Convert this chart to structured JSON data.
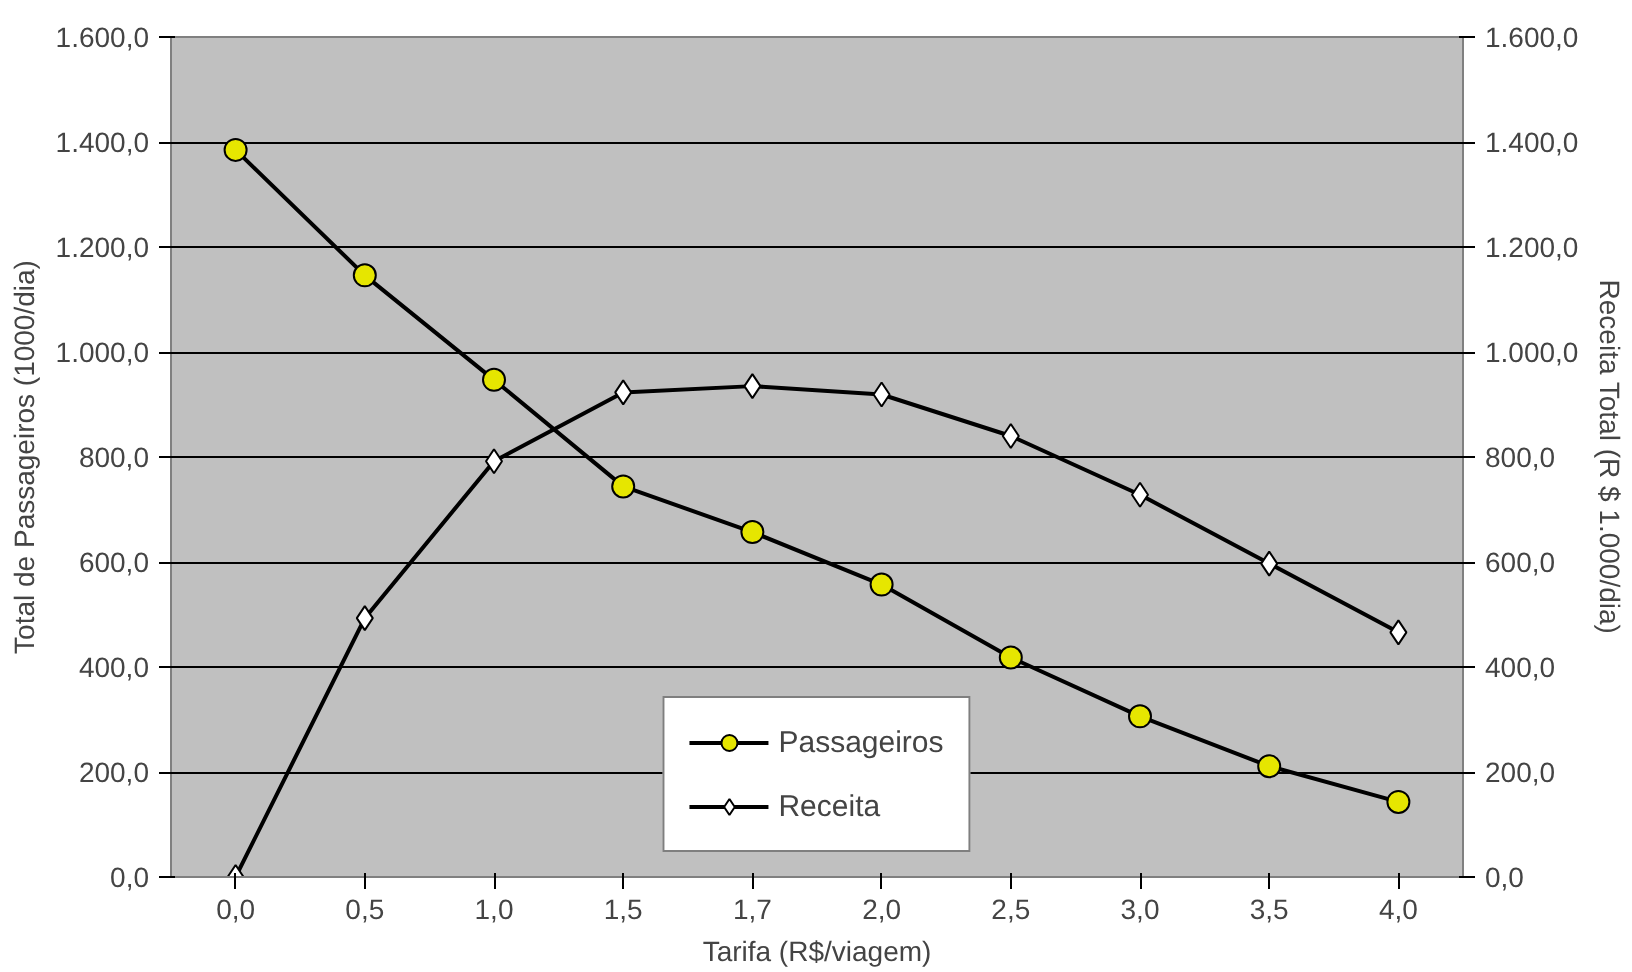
{
  "chart_data": {
    "type": "line",
    "xlabel": "Tarifa (R$/viagem)",
    "ylabel": "Total de Passageiros (1000/dia)",
    "y2label": "Receita Total (R $ 1.000/dia)",
    "categories": [
      "0,0",
      "0,5",
      "1,0",
      "1,5",
      "1,7",
      "2,0",
      "2,5",
      "3,0",
      "3,5",
      "4,0"
    ],
    "series": [
      {
        "name": "Passageiros",
        "color": "#e6e600",
        "marker": "circle",
        "values": [
          1385,
          1146,
          947,
          744,
          657,
          557,
          418,
          306,
          211,
          143
        ]
      },
      {
        "name": "Receita",
        "color": "#ffffff",
        "marker": "diamond",
        "axis": "y2",
        "values": [
          0,
          493,
          792,
          923,
          935,
          919,
          840,
          728,
          597,
          466
        ]
      }
    ],
    "ylim": [
      0,
      1600
    ],
    "yticks": [
      {
        "value": 0,
        "label": "0,0"
      },
      {
        "value": 200,
        "label": "200,0"
      },
      {
        "value": 400,
        "label": "400,0"
      },
      {
        "value": 600,
        "label": "600,0"
      },
      {
        "value": 800,
        "label": "800,0"
      },
      {
        "value": 1000,
        "label": "1.000,0"
      },
      {
        "value": 1200,
        "label": "1.200,0"
      },
      {
        "value": 1400,
        "label": "1.400,0"
      },
      {
        "value": 1600,
        "label": "1.600,0"
      }
    ],
    "y2lim": [
      0,
      1600
    ],
    "y2ticks": [
      {
        "value": 0,
        "label": "0,0"
      },
      {
        "value": 200,
        "label": "200,0"
      },
      {
        "value": 400,
        "label": "400,0"
      },
      {
        "value": 600,
        "label": "600,0"
      },
      {
        "value": 800,
        "label": "800,0"
      },
      {
        "value": 1000,
        "label": "1.000,0"
      },
      {
        "value": 1200,
        "label": "1.200,0"
      },
      {
        "value": 1400,
        "label": "1.400,0"
      },
      {
        "value": 1600,
        "label": "1.600,0"
      }
    ],
    "grid": "y",
    "legend": "bottom",
    "line_style": "solid"
  }
}
